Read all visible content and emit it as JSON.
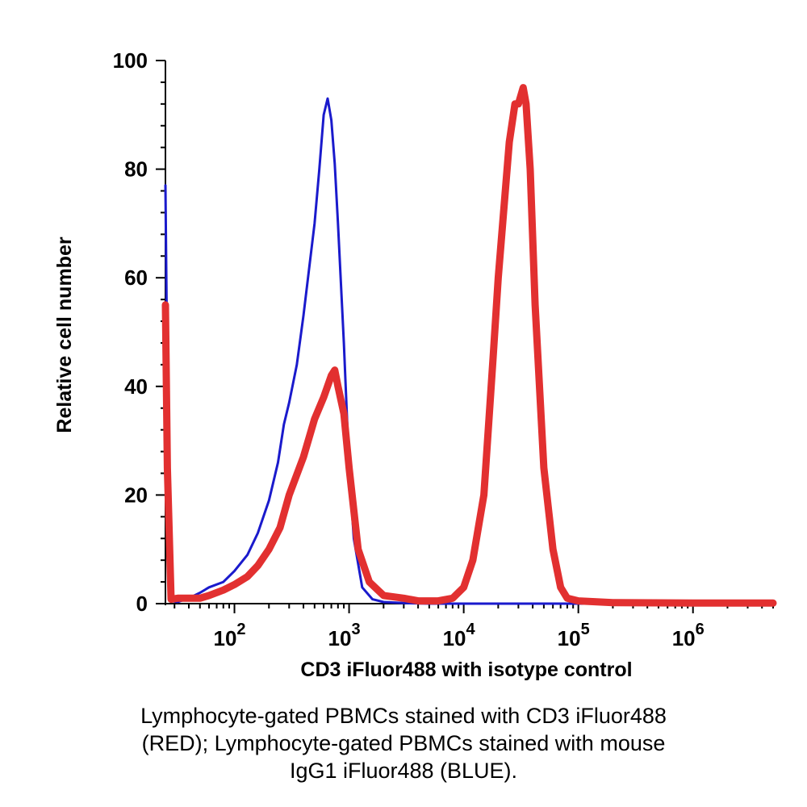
{
  "chart_data": {
    "type": "line",
    "xscale": "log",
    "xlim": [
      25,
      5000000
    ],
    "ylim": [
      0,
      100
    ],
    "xlabel": "CD3 iFluor488 with isotype control",
    "ylabel": "Relative cell number",
    "yticks": [
      0,
      20,
      40,
      60,
      80,
      100
    ],
    "xticks": [
      {
        "value": 100,
        "base": "10",
        "exp": "2"
      },
      {
        "value": 1000,
        "base": "10",
        "exp": "3"
      },
      {
        "value": 10000,
        "base": "10",
        "exp": "4"
      },
      {
        "value": 100000,
        "base": "10",
        "exp": "5"
      },
      {
        "value": 1000000,
        "base": "10",
        "exp": "6"
      }
    ],
    "grid": false,
    "series": [
      {
        "color": "#1a1acc",
        "x": [
          25,
          26,
          28,
          32,
          40,
          50,
          60,
          80,
          100,
          130,
          160,
          200,
          240,
          270,
          300,
          350,
          400,
          450,
          500,
          550,
          600,
          650,
          700,
          750,
          800,
          900,
          1000,
          1100,
          1300,
          1600,
          2000,
          3000,
          5000,
          10000,
          100000,
          1000000,
          5000000
        ],
        "y": [
          77,
          40,
          0.5,
          0.3,
          1,
          2,
          3,
          4,
          6,
          9,
          13,
          19,
          26,
          33,
          37,
          44,
          53,
          62,
          70,
          80,
          90,
          93,
          89,
          81,
          70,
          48,
          25,
          12,
          3,
          0.8,
          0.3,
          0.1,
          0,
          0,
          0,
          0,
          0
        ]
      },
      {
        "color": "#e23030",
        "x": [
          25,
          26,
          28,
          32,
          40,
          50,
          60,
          80,
          100,
          130,
          160,
          200,
          250,
          300,
          400,
          500,
          600,
          700,
          750,
          800,
          900,
          1000,
          1200,
          1500,
          2000,
          3000,
          4000,
          6000,
          8000,
          10000,
          12000,
          15000,
          18000,
          20000,
          25000,
          28000,
          30000,
          33000,
          35000,
          38000,
          42000,
          50000,
          60000,
          70000,
          80000,
          100000,
          200000,
          1000000,
          5000000
        ],
        "y": [
          55,
          25,
          0.8,
          1,
          1,
          1,
          1.5,
          2.5,
          3.5,
          5,
          7,
          10,
          14,
          20,
          27,
          34,
          38,
          42,
          43,
          40,
          35,
          25,
          10,
          4,
          1.5,
          1,
          0.5,
          0.5,
          1,
          3,
          8,
          20,
          45,
          60,
          85,
          92,
          92,
          95,
          92,
          80,
          55,
          25,
          10,
          3,
          1,
          0.5,
          0.2,
          0.1,
          0.1
        ]
      }
    ]
  },
  "caption": {
    "lines": [
      "Lymphocyte-gated PBMCs stained with CD3 iFluor488",
      "(RED); Lymphocyte-gated PBMCs stained with mouse",
      "IgG1 iFluor488 (BLUE)."
    ]
  }
}
